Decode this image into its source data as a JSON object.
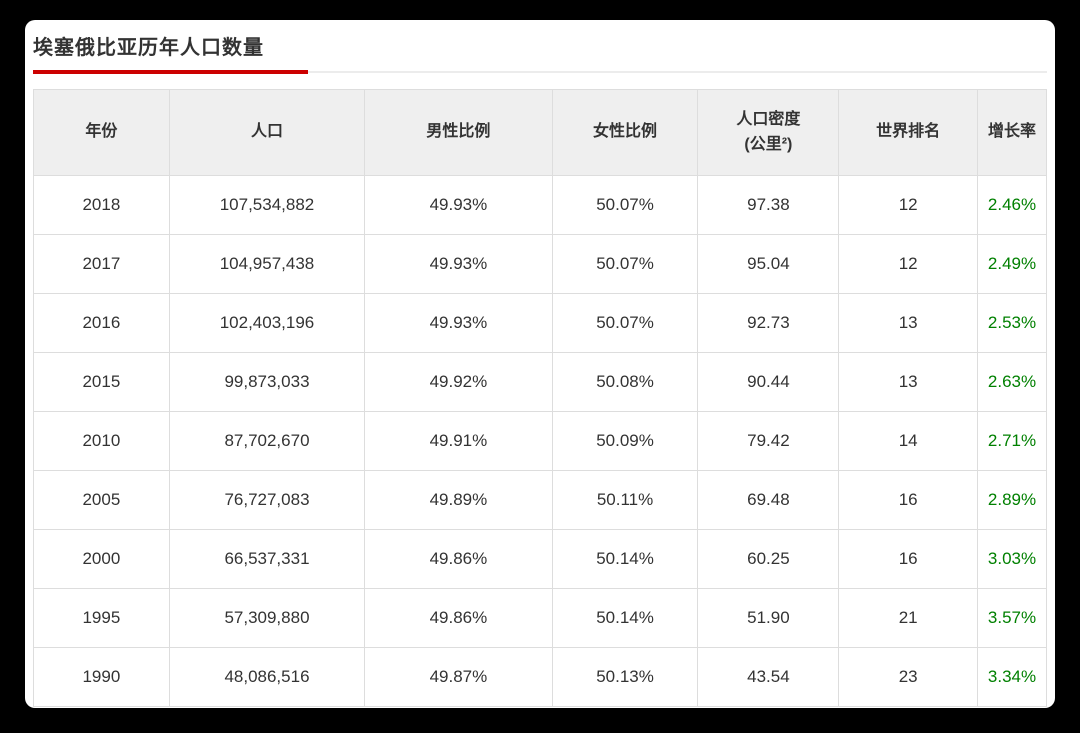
{
  "theme": {
    "background": "#000000",
    "card": "#ffffff",
    "accent_red": "#cc0000",
    "growth_green": "#008000",
    "text": "#333333",
    "header_bg": "#efefef",
    "border": "#dddddd"
  },
  "chart_data": {
    "type": "table",
    "title": "埃塞俄比亚历年人口数量",
    "columns": [
      "年份",
      "人口",
      "男性比例",
      "女性比例",
      "人口密度(公里²)",
      "世界排名",
      "增长率"
    ],
    "header_lines": [
      [
        "年份"
      ],
      [
        "人口"
      ],
      [
        "男性比例"
      ],
      [
        "女性比例"
      ],
      [
        "人口密度",
        "(公里²)"
      ],
      [
        "世界排名"
      ],
      [
        "增长率"
      ]
    ],
    "rows": [
      [
        "2018",
        "107,534,882",
        "49.93%",
        "50.07%",
        "97.38",
        "12",
        "2.46%"
      ],
      [
        "2017",
        "104,957,438",
        "49.93%",
        "50.07%",
        "95.04",
        "12",
        "2.49%"
      ],
      [
        "2016",
        "102,403,196",
        "49.93%",
        "50.07%",
        "92.73",
        "13",
        "2.53%"
      ],
      [
        "2015",
        "99,873,033",
        "49.92%",
        "50.08%",
        "90.44",
        "13",
        "2.63%"
      ],
      [
        "2010",
        "87,702,670",
        "49.91%",
        "50.09%",
        "79.42",
        "14",
        "2.71%"
      ],
      [
        "2005",
        "76,727,083",
        "49.89%",
        "50.11%",
        "69.48",
        "16",
        "2.89%"
      ],
      [
        "2000",
        "66,537,331",
        "49.86%",
        "50.14%",
        "60.25",
        "16",
        "3.03%"
      ],
      [
        "1995",
        "57,309,880",
        "49.86%",
        "50.14%",
        "51.90",
        "21",
        "3.57%"
      ],
      [
        "1990",
        "48,086,516",
        "49.87%",
        "50.13%",
        "43.54",
        "23",
        "3.34%"
      ]
    ],
    "growth_column_index": 6
  }
}
